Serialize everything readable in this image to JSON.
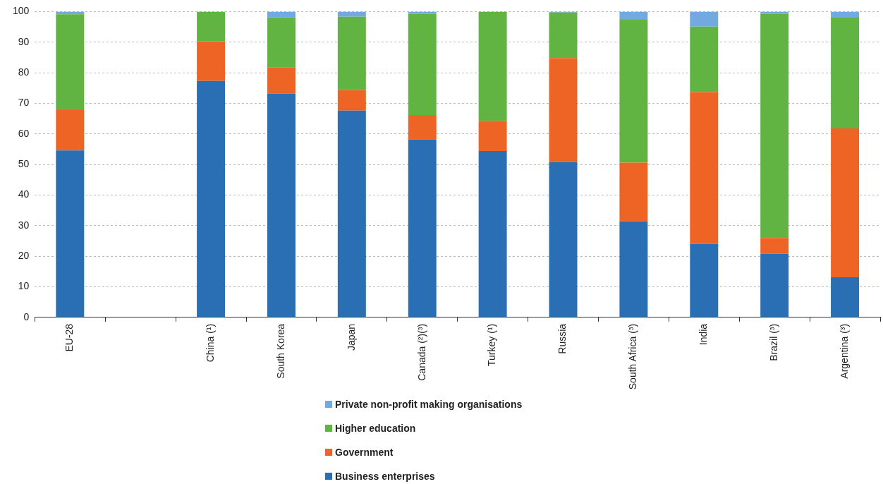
{
  "chart_data": {
    "type": "bar",
    "stacked": true,
    "categories": [
      "EU-28",
      null,
      "China (¹)",
      "South Korea",
      "Japan",
      "Canada (²)(³)",
      "Turkey (¹)",
      "Russia",
      "South Africa (³)",
      "India",
      "Brazil (³)",
      "Argentina (³)"
    ],
    "series": [
      {
        "name": "Business enterprises",
        "color": "#2a6eb4",
        "values": [
          54.6,
          null,
          77.3,
          73.2,
          67.6,
          58.2,
          54.4,
          50.8,
          31.4,
          24.0,
          20.8,
          13.1
        ]
      },
      {
        "name": "Government",
        "color": "#ee6424",
        "values": [
          13.2,
          null,
          13.0,
          8.6,
          6.7,
          8.0,
          9.9,
          34.0,
          19.2,
          49.7,
          5.2,
          48.7
        ]
      },
      {
        "name": "Higher education",
        "color": "#61b342",
        "values": [
          31.3,
          null,
          9.7,
          16.3,
          24.0,
          33.1,
          35.7,
          14.9,
          46.7,
          21.4,
          73.3,
          36.2
        ]
      },
      {
        "name": "Private non-profit making organisations",
        "color": "#72a9e0",
        "values": [
          0.9,
          null,
          0,
          1.9,
          1.7,
          0.7,
          0,
          0.3,
          2.7,
          4.9,
          0.7,
          2.0
        ]
      }
    ],
    "ylim": [
      0,
      100
    ],
    "yticks": [
      0,
      10,
      20,
      30,
      40,
      50,
      60,
      70,
      80,
      90,
      100
    ],
    "grid": "y",
    "legend": "bottom"
  }
}
